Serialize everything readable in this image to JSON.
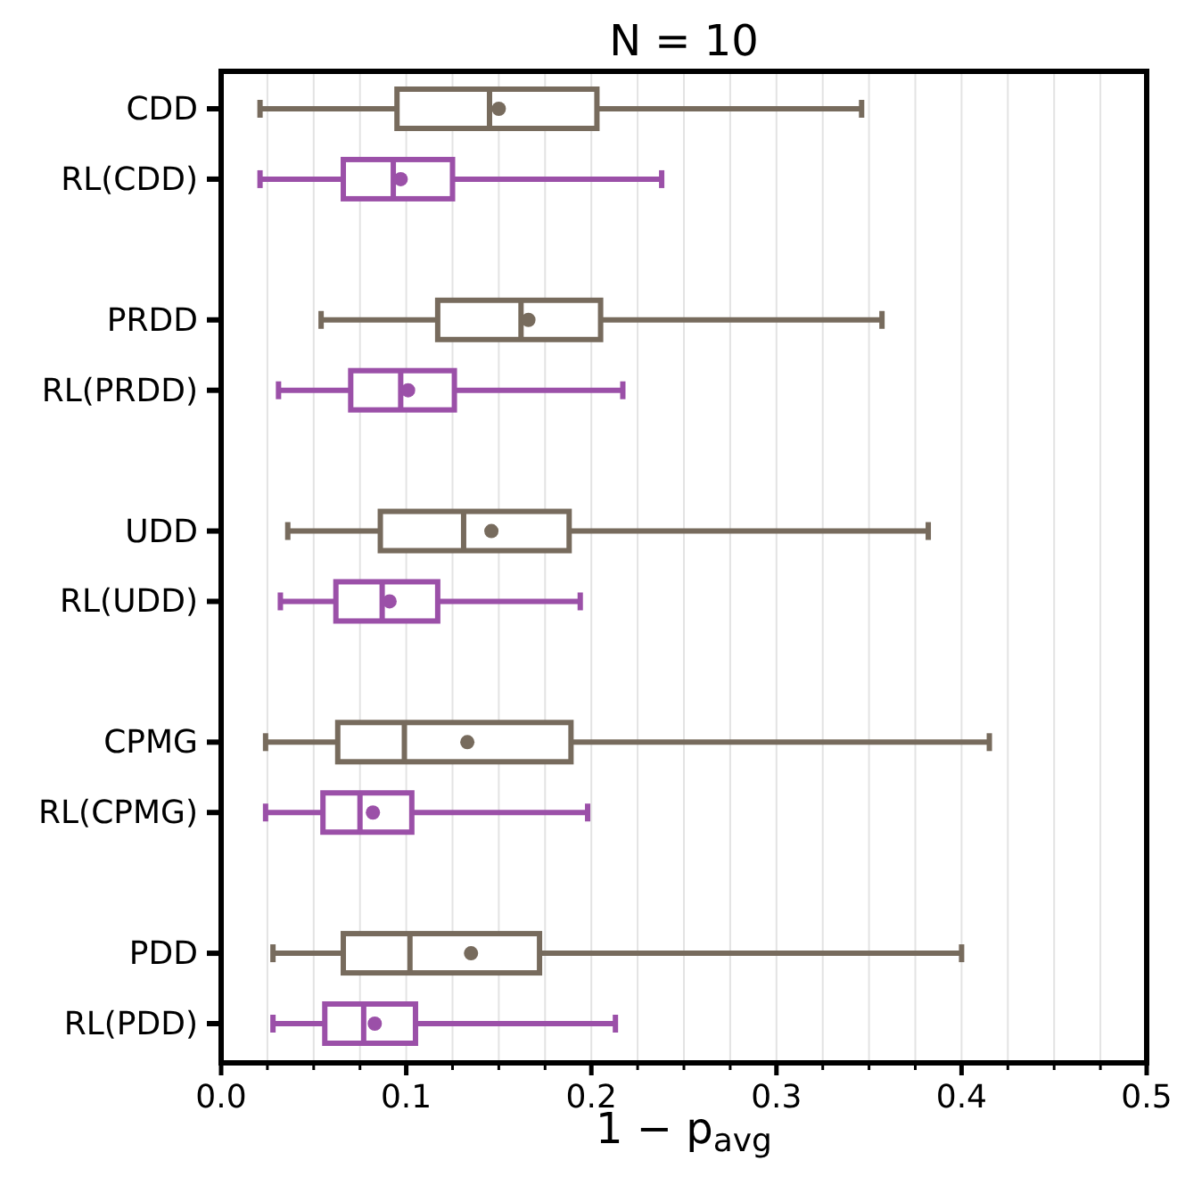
{
  "chart_data": {
    "type": "box",
    "orientation": "horizontal",
    "title": "N = 10",
    "xlabel": "1 − p$_{avg}$",
    "categories": [
      "CDD",
      "RL(CDD)",
      null,
      "PRDD",
      "RL(PRDD)",
      null,
      "UDD",
      "RL(UDD)",
      null,
      "CPMG",
      "RL(CPMG)",
      null,
      "PDD",
      "RL(PDD)"
    ],
    "colors": [
      "#776b5d",
      "#9b50a8",
      null,
      "#776b5d",
      "#9b50a8",
      null,
      "#776b5d",
      "#9b50a8",
      null,
      "#776b5d",
      "#9b50a8",
      null,
      "#776b5d",
      "#9b50a8"
    ],
    "boxes": [
      {
        "low": 0.021,
        "q1": 0.095,
        "median": 0.145,
        "q3": 0.203,
        "high": 0.346,
        "mean": 0.15
      },
      {
        "low": 0.021,
        "q1": 0.066,
        "median": 0.093,
        "q3": 0.125,
        "high": 0.238,
        "mean": 0.097
      },
      null,
      {
        "low": 0.054,
        "q1": 0.117,
        "median": 0.162,
        "q3": 0.205,
        "high": 0.357,
        "mean": 0.166
      },
      {
        "low": 0.031,
        "q1": 0.07,
        "median": 0.097,
        "q3": 0.126,
        "high": 0.217,
        "mean": 0.101
      },
      null,
      {
        "low": 0.036,
        "q1": 0.086,
        "median": 0.131,
        "q3": 0.188,
        "high": 0.382,
        "mean": 0.146
      },
      {
        "low": 0.032,
        "q1": 0.062,
        "median": 0.087,
        "q3": 0.117,
        "high": 0.194,
        "mean": 0.091
      },
      null,
      {
        "low": 0.024,
        "q1": 0.063,
        "median": 0.099,
        "q3": 0.189,
        "high": 0.415,
        "mean": 0.133
      },
      {
        "low": 0.024,
        "q1": 0.055,
        "median": 0.075,
        "q3": 0.103,
        "high": 0.198,
        "mean": 0.082
      },
      null,
      {
        "low": 0.028,
        "q1": 0.066,
        "median": 0.102,
        "q3": 0.172,
        "high": 0.4,
        "mean": 0.135
      },
      {
        "low": 0.028,
        "q1": 0.056,
        "median": 0.077,
        "q3": 0.105,
        "high": 0.213,
        "mean": 0.083
      }
    ],
    "xlim": [
      0,
      0.5
    ],
    "xticks": [
      {
        "value": 0,
        "label": "0.0"
      },
      {
        "value": 0.025,
        "label": null
      },
      {
        "value": 0.05,
        "label": null
      },
      {
        "value": 0.075,
        "label": null
      },
      0.1,
      {
        "value": 0.125,
        "label": null
      },
      {
        "value": 0.15,
        "label": null
      },
      {
        "value": 0.175,
        "label": null
      },
      0.2,
      {
        "value": 0.225,
        "label": null
      },
      {
        "value": 0.25,
        "label": null
      },
      {
        "value": 0.275,
        "label": null
      },
      0.3,
      {
        "value": 0.325,
        "label": null
      },
      {
        "value": 0.35,
        "label": null
      },
      {
        "value": 0.375,
        "label": null
      },
      0.4,
      {
        "value": 0.425,
        "label": null
      },
      {
        "value": 0.45,
        "label": null
      },
      {
        "value": 0.475,
        "label": null
      },
      0.5
    ],
    "grid": "x"
  }
}
